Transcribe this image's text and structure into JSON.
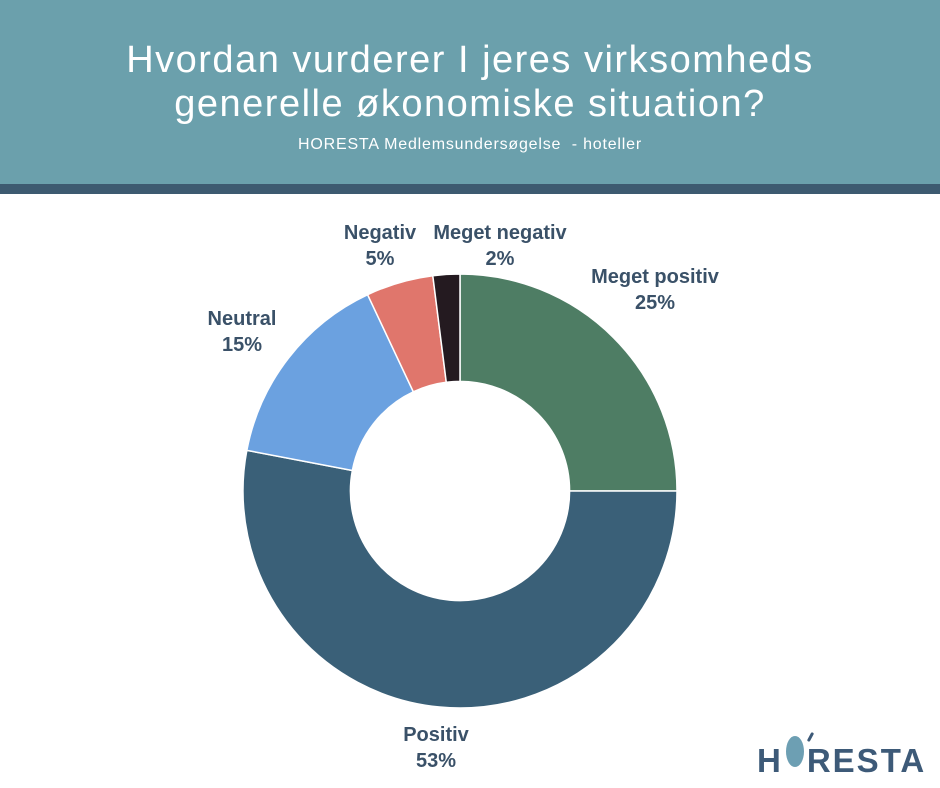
{
  "header": {
    "title_line1": "Hvordan vurderer I jeres virksomheds",
    "title_line2": "generelle økonomiske situation?",
    "subtitle": "HORESTA Medlemsundersøgelse  - hoteller"
  },
  "chart_data": {
    "type": "pie",
    "subtype": "donut",
    "title": "Hvordan vurderer I jeres virksomheds generelle økonomiske situation?",
    "subtitle": "HORESTA Medlemsundersøgelse - hoteller",
    "start_angle_deg": 0,
    "direction": "clockwise",
    "inner_radius_ratio": 0.505,
    "legend_position": "outside-labels",
    "slices": [
      {
        "label": "Meget positiv",
        "value": 25,
        "pct_label": "25%",
        "color": "#4E7D64"
      },
      {
        "label": "Positiv",
        "value": 53,
        "pct_label": "53%",
        "color": "#3A6078"
      },
      {
        "label": "Neutral",
        "value": 15,
        "pct_label": "15%",
        "color": "#6BA1E0"
      },
      {
        "label": "Negativ",
        "value": 5,
        "pct_label": "5%",
        "color": "#E0766C"
      },
      {
        "label": "Meget negativ",
        "value": 2,
        "pct_label": "2%",
        "color": "#241A20"
      }
    ]
  },
  "logo": {
    "prefix": "H",
    "suffix": "RESTA",
    "name": "HORESTA"
  },
  "colors": {
    "header_bg": "#6BA0AC",
    "accent_bar": "#3D5A70",
    "title_text": "#FFFFFF",
    "label_text": "#3A5168",
    "logo_text": "#3D5A78",
    "logo_ring": "#6D9FB3",
    "background": "#FFFFFF"
  }
}
